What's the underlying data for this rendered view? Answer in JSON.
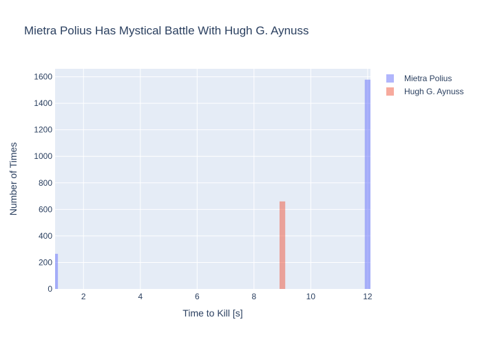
{
  "chart_data": {
    "type": "bar",
    "title": "Mietra Polius Has Mystical Battle With Hugh G. Aynuss",
    "xlabel": "Time to Kill [s]",
    "ylabel": "Number of Times",
    "xlim": [
      1,
      12.1
    ],
    "ylim": [
      0,
      1660
    ],
    "xticks": [
      2,
      4,
      6,
      8,
      10,
      12
    ],
    "yticks": [
      0,
      200,
      400,
      600,
      800,
      1000,
      1200,
      1400,
      1600
    ],
    "bar_width": 0.2,
    "grid": true,
    "legend_placement": "top-right",
    "series": [
      {
        "name": "Mietra Polius",
        "color": "#636efa",
        "opacity": 0.5,
        "x": [
          1,
          12
        ],
        "values": [
          265,
          1578
        ]
      },
      {
        "name": "Hugh G. Aynuss",
        "color": "#ef553b",
        "opacity": 0.5,
        "x": [
          9
        ],
        "values": [
          660
        ]
      }
    ]
  }
}
